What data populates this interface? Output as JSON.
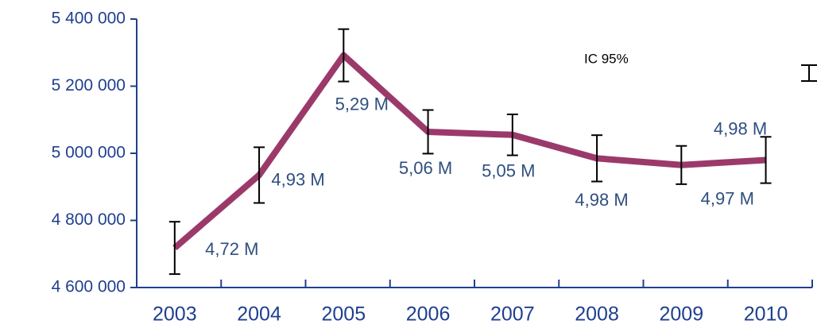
{
  "chart_data": {
    "type": "line",
    "categories": [
      "2003",
      "2004",
      "2005",
      "2006",
      "2007",
      "2008",
      "2009",
      "2010"
    ],
    "values": [
      4718000,
      4935000,
      5292000,
      5064000,
      5055000,
      4985000,
      4965000,
      4980000
    ],
    "value_labels": [
      "4,72 M",
      "4,93 M",
      "5,29 M",
      "5,06 M",
      "5,05 M",
      "4,98 M",
      "4,97 M",
      "4,98 M"
    ],
    "errors": [
      78000,
      83000,
      78000,
      65000,
      61000,
      69000,
      57000,
      69000
    ],
    "error_label": "IC 95%",
    "color": "#9b3a6a",
    "ylim": [
      4600000,
      5400000
    ],
    "yticks": [
      {
        "value": 4600000,
        "label": "4 600 000"
      },
      {
        "value": 4800000,
        "label": "4 800 000"
      },
      {
        "value": 5000000,
        "label": "5 000 000"
      },
      {
        "value": 5200000,
        "label": "5 200 000"
      },
      {
        "value": 5400000,
        "label": "5 400 000"
      }
    ]
  }
}
